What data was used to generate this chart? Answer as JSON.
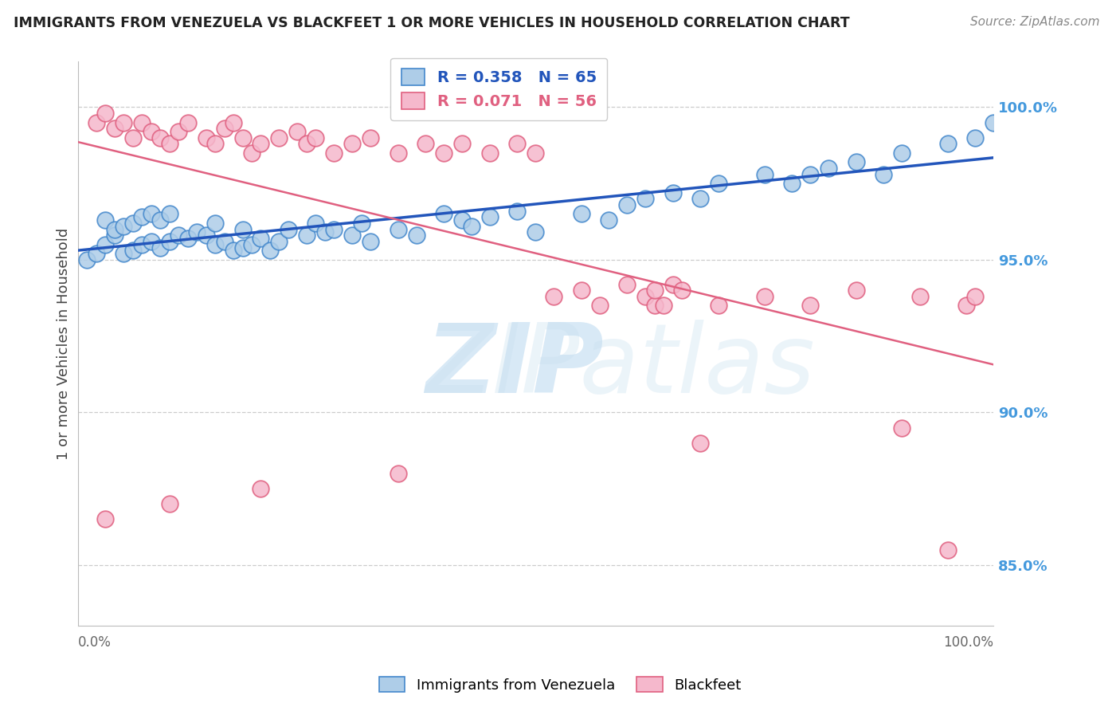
{
  "title": "IMMIGRANTS FROM VENEZUELA VS BLACKFEET 1 OR MORE VEHICLES IN HOUSEHOLD CORRELATION CHART",
  "source": "Source: ZipAtlas.com",
  "ylabel": "1 or more Vehicles in Household",
  "xmin": 0.0,
  "xmax": 100.0,
  "ymin": 83.0,
  "ymax": 101.5,
  "y_ticks": [
    85.0,
    90.0,
    95.0,
    100.0
  ],
  "blue_scatter_color": "#aecde8",
  "pink_scatter_color": "#f5b8cc",
  "blue_edge_color": "#4488cc",
  "pink_edge_color": "#e06080",
  "blue_line_color": "#2255bb",
  "pink_line_color": "#e06080",
  "blue_tick_color": "#4499dd",
  "watermark_color": "#daeef8",
  "background_color": "#ffffff",
  "legend_blue_text": "R = 0.358   N = 65",
  "legend_pink_text": "R = 0.071   N = 56",
  "bottom_legend_blue": "Immigrants from Venezuela",
  "bottom_legend_pink": "Blackfeet",
  "blue_x": [
    1,
    2,
    3,
    3,
    4,
    4,
    5,
    5,
    6,
    6,
    7,
    7,
    8,
    8,
    9,
    9,
    10,
    10,
    11,
    12,
    13,
    14,
    15,
    15,
    16,
    17,
    18,
    18,
    19,
    20,
    21,
    22,
    23,
    25,
    26,
    27,
    28,
    30,
    31,
    32,
    35,
    37,
    40,
    42,
    43,
    45,
    48,
    50,
    55,
    58,
    60,
    62,
    65,
    68,
    70,
    75,
    78,
    80,
    82,
    85,
    88,
    90,
    95,
    98,
    100
  ],
  "blue_y": [
    95.0,
    95.2,
    95.5,
    96.3,
    95.8,
    96.0,
    95.2,
    96.1,
    95.3,
    96.2,
    95.5,
    96.4,
    95.6,
    96.5,
    95.4,
    96.3,
    95.6,
    96.5,
    95.8,
    95.7,
    95.9,
    95.8,
    95.5,
    96.2,
    95.6,
    95.3,
    95.4,
    96.0,
    95.5,
    95.7,
    95.3,
    95.6,
    96.0,
    95.8,
    96.2,
    95.9,
    96.0,
    95.8,
    96.2,
    95.6,
    96.0,
    95.8,
    96.5,
    96.3,
    96.1,
    96.4,
    96.6,
    95.9,
    96.5,
    96.3,
    96.8,
    97.0,
    97.2,
    97.0,
    97.5,
    97.8,
    97.5,
    97.8,
    98.0,
    98.2,
    97.8,
    98.5,
    98.8,
    99.0,
    99.5
  ],
  "pink_x": [
    2,
    3,
    4,
    5,
    6,
    7,
    8,
    9,
    10,
    11,
    12,
    14,
    15,
    16,
    17,
    18,
    19,
    20,
    22,
    24,
    25,
    26,
    28,
    30,
    32,
    35,
    38,
    40,
    42,
    45,
    48,
    50,
    52,
    55,
    57,
    60,
    62,
    63,
    63,
    64,
    65,
    66,
    68,
    70,
    75,
    80,
    85,
    90,
    92,
    95,
    97,
    98,
    3,
    10,
    20,
    35
  ],
  "pink_y": [
    99.5,
    99.8,
    99.3,
    99.5,
    99.0,
    99.5,
    99.2,
    99.0,
    98.8,
    99.2,
    99.5,
    99.0,
    98.8,
    99.3,
    99.5,
    99.0,
    98.5,
    98.8,
    99.0,
    99.2,
    98.8,
    99.0,
    98.5,
    98.8,
    99.0,
    98.5,
    98.8,
    98.5,
    98.8,
    98.5,
    98.8,
    98.5,
    93.8,
    94.0,
    93.5,
    94.2,
    93.8,
    93.5,
    94.0,
    93.5,
    94.2,
    94.0,
    89.0,
    93.5,
    93.8,
    93.5,
    94.0,
    89.5,
    93.8,
    85.5,
    93.5,
    93.8,
    86.5,
    87.0,
    87.5,
    88.0
  ]
}
